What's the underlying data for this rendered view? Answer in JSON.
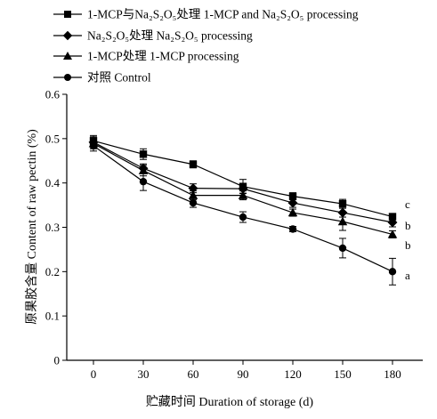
{
  "chart_data": {
    "type": "line",
    "xlabel": "贮藏时间 Duration of storage (d)",
    "ylabel": "原果胶含量 Content of raw pectin (%)",
    "x": [
      0,
      30,
      60,
      90,
      120,
      150,
      180
    ],
    "xticks": [
      "0",
      "30",
      "60",
      "90",
      "120",
      "150",
      "180"
    ],
    "yticks": [
      "0",
      "0.1",
      "0.2",
      "0.3",
      "0.4",
      "0.5",
      "0.6"
    ],
    "xlim": [
      0,
      180
    ],
    "ylim": [
      0,
      0.6
    ],
    "grid": false,
    "legend_position": "top-left",
    "series": [
      {
        "name": "1-MCP与Na₂S₂O₅处理 1-MCP and Na₂S₂O₅ processing",
        "marker": "square",
        "values": [
          0.495,
          0.465,
          0.442,
          0.392,
          0.37,
          0.353,
          0.324
        ],
        "errors": [
          0.012,
          0.012,
          0.008,
          0.016,
          0.008,
          0.01,
          0.006
        ],
        "end_label": "c"
      },
      {
        "name": "Na₂S₂O₅处理 Na₂S₂O₅ processing",
        "marker": "diamond",
        "values": [
          0.492,
          0.433,
          0.388,
          0.387,
          0.355,
          0.333,
          0.311
        ],
        "errors": [
          0.012,
          0.01,
          0.01,
          0.01,
          0.01,
          0.01,
          0.01
        ],
        "end_label": "b"
      },
      {
        "name": "1-MCP处理 1-MCP processing",
        "marker": "triangle",
        "values": [
          0.489,
          0.428,
          0.372,
          0.372,
          0.333,
          0.313,
          0.284
        ],
        "errors": [
          0.012,
          0.012,
          0.01,
          0.01,
          0.008,
          0.02,
          0.008
        ],
        "end_label": "b"
      },
      {
        "name": "对照 Control",
        "marker": "circle",
        "values": [
          0.484,
          0.403,
          0.355,
          0.323,
          0.296,
          0.253,
          0.2
        ],
        "errors": [
          0.012,
          0.02,
          0.01,
          0.012,
          0.006,
          0.022,
          0.03
        ],
        "end_label": "a"
      }
    ]
  }
}
